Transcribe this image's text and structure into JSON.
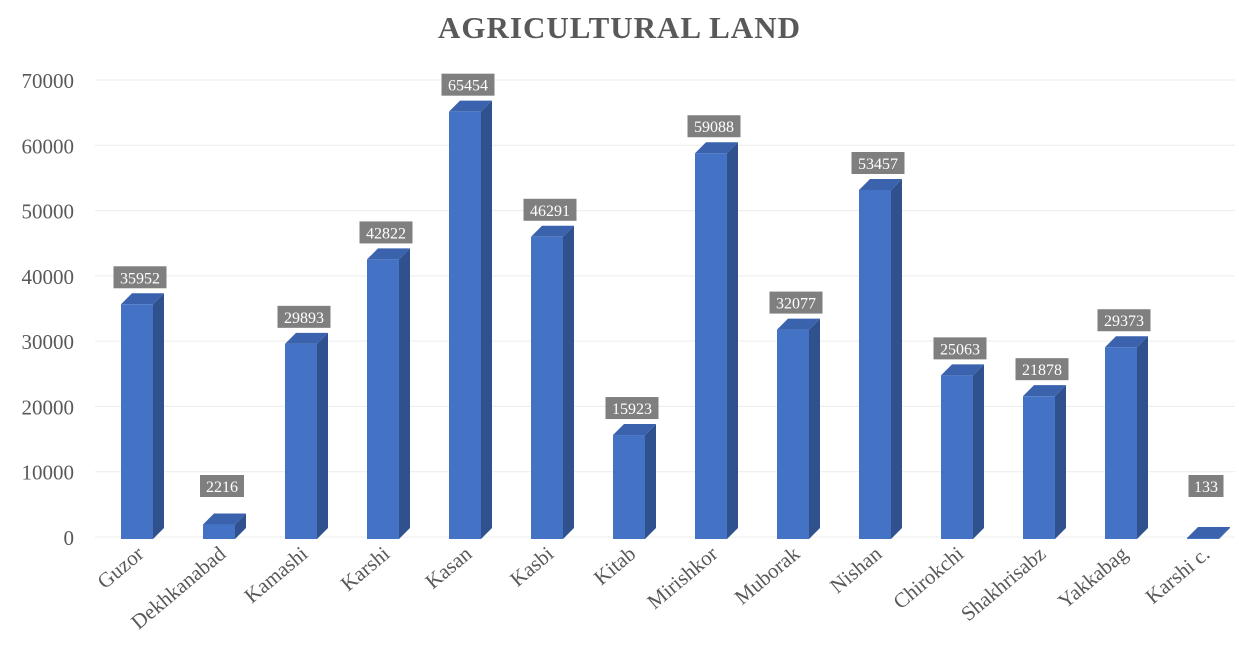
{
  "chart_data": {
    "type": "bar",
    "title": "AGRICULTURAL LAND",
    "xlabel": "",
    "ylabel": "",
    "ylim": [
      0,
      70000
    ],
    "yticks": [
      0,
      10000,
      20000,
      30000,
      40000,
      50000,
      60000,
      70000
    ],
    "grid": true,
    "legend": "none",
    "categories": [
      "Guzor",
      "Dekhkanabad",
      "Kamashi",
      "Karshi",
      "Kasan",
      "Kasbi",
      "Kitab",
      "Mirishkor",
      "Muborak",
      "Nishan",
      "Chirokchi",
      "Shakhrisabz",
      "Yakkabag",
      "Karshi c."
    ],
    "values": [
      35952,
      2216,
      29893,
      42822,
      65454,
      46291,
      15923,
      59088,
      32077,
      53457,
      25063,
      21878,
      29373,
      133
    ],
    "colors": {
      "bar_front": "#4472C4",
      "bar_side": "#2F528F",
      "bar_top": "#3A62AD",
      "label_bg": "#7F7F7F",
      "grid": "#ECECEC",
      "text": "#595959"
    }
  }
}
